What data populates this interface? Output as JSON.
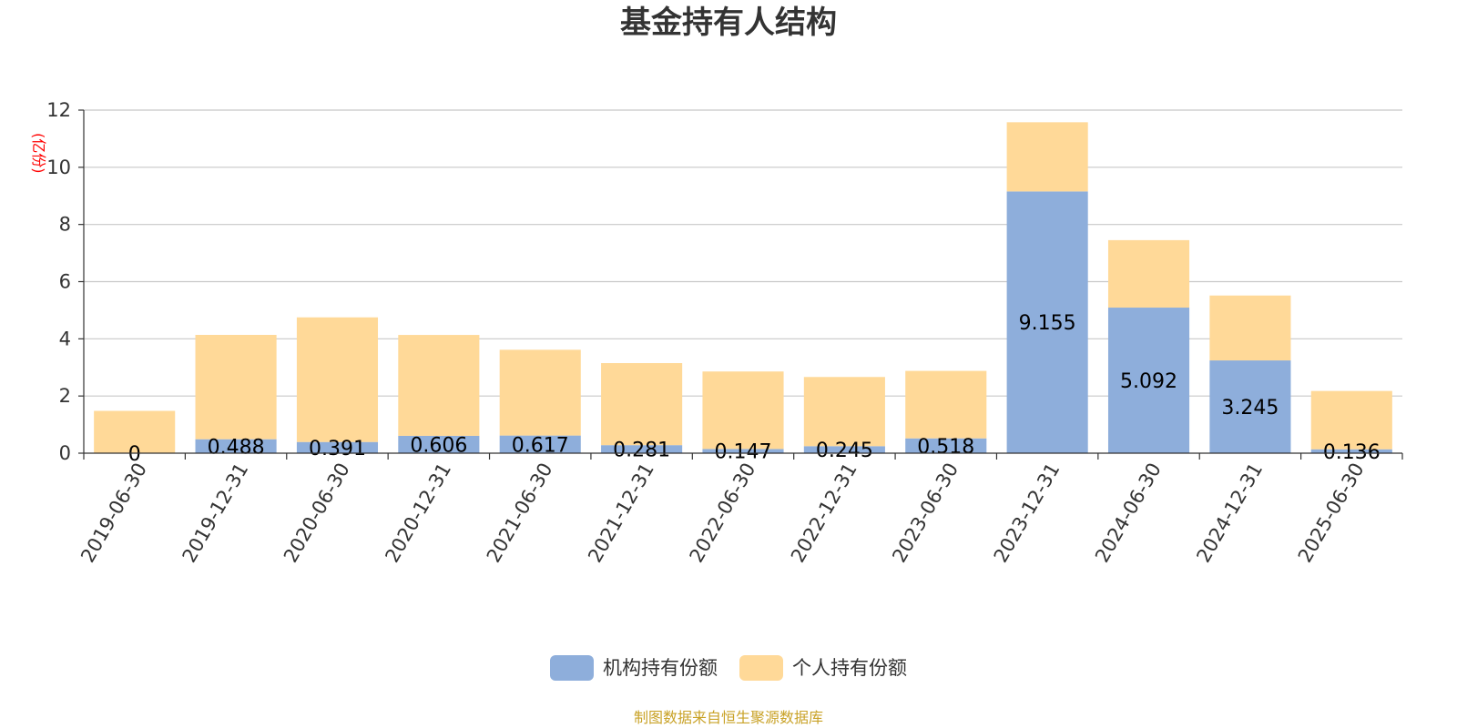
{
  "chart_data": {
    "type": "bar",
    "stacked": true,
    "title": "基金持有人结构",
    "unit_label": "(亿份)",
    "categories": [
      "2019-06-30",
      "2019-12-31",
      "2020-06-30",
      "2020-12-31",
      "2021-06-30",
      "2021-12-31",
      "2022-06-30",
      "2022-12-31",
      "2023-06-30",
      "2023-12-31",
      "2024-06-30",
      "2024-12-31",
      "2025-06-30"
    ],
    "series": [
      {
        "name": "机构持有份额",
        "color": "#8eaedb",
        "values": [
          0,
          0.488,
          0.391,
          0.606,
          0.617,
          0.281,
          0.147,
          0.245,
          0.518,
          9.155,
          5.092,
          3.245,
          0.136
        ],
        "labels": [
          "0",
          "0.488",
          "0.391",
          "0.606",
          "0.617",
          "0.281",
          "0.147",
          "0.245",
          "0.518",
          "9.155",
          "5.092",
          "3.245",
          "0.136"
        ]
      },
      {
        "name": "个人持有份额",
        "color": "#ffd998",
        "values": [
          1.48,
          3.65,
          4.36,
          3.53,
          3.0,
          2.87,
          2.71,
          2.42,
          2.36,
          2.42,
          2.36,
          2.27,
          2.04
        ]
      }
    ],
    "ylim": [
      0,
      12
    ],
    "yticks": [
      "0",
      "2",
      "4",
      "6",
      "8",
      "10",
      "12"
    ],
    "grid": true,
    "legend_position": "bottom-center"
  },
  "source_text": "制图数据来自恒生聚源数据库"
}
